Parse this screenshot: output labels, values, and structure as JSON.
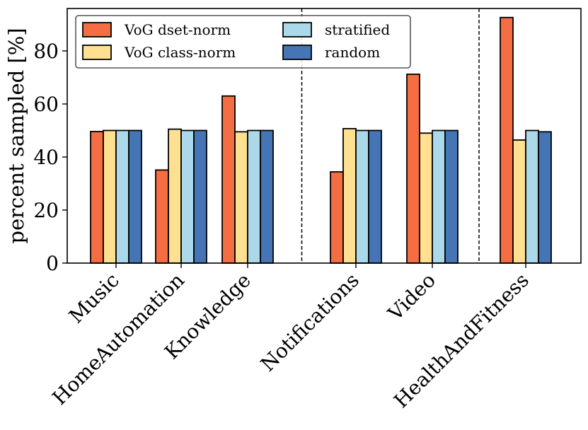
{
  "chart_data": {
    "type": "bar",
    "title": "",
    "xlabel": "",
    "ylabel": "percent sampled [%]",
    "ylim": [
      0,
      96
    ],
    "yticks": [
      0,
      20,
      40,
      60,
      80
    ],
    "grid": false,
    "legend_position": "top-left",
    "legend_columns": 2,
    "categories": [
      "Music",
      "HomeAutomation",
      "Knowledge",
      "Notifications",
      "Video",
      "HealthAndFitness"
    ],
    "group_separators_after": [
      2,
      4
    ],
    "series": [
      {
        "name": "VoG dset-norm",
        "color": "#F46D43",
        "values": [
          49.6,
          35.1,
          63.0,
          34.4,
          71.2,
          92.6
        ]
      },
      {
        "name": "VoG class-norm",
        "color": "#FEE090",
        "values": [
          50.0,
          50.5,
          49.5,
          50.7,
          49.0,
          46.4
        ]
      },
      {
        "name": "stratified",
        "color": "#ABD9E9",
        "values": [
          50.0,
          50.0,
          50.0,
          50.0,
          50.0,
          50.0
        ]
      },
      {
        "name": "random",
        "color": "#4575B4",
        "values": [
          50.0,
          50.0,
          50.0,
          50.0,
          50.0,
          49.5
        ]
      }
    ]
  }
}
